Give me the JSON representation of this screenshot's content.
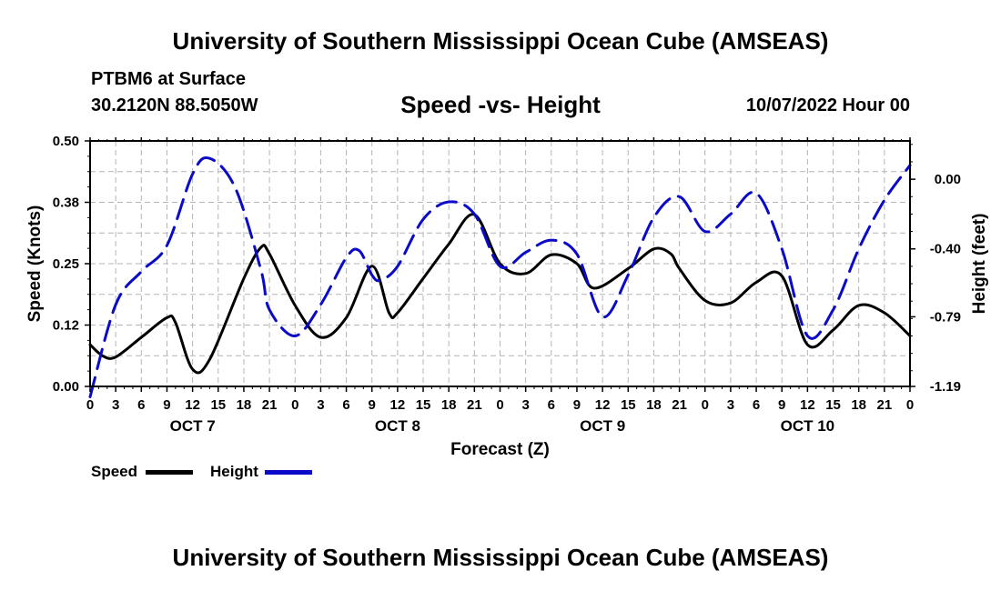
{
  "titles": {
    "main": "University of Southern Mississippi Ocean Cube (AMSEAS)",
    "footer": "University of Southern Mississippi Ocean Cube (AMSEAS)",
    "station": "PTBM6 at Surface",
    "coords": "30.2120N  88.5050W",
    "subtitle": "Speed -vs- Height",
    "datetime": "10/07/2022 Hour 00"
  },
  "legend": {
    "speed": "Speed",
    "height": "Height"
  },
  "colors": {
    "speed": "#000000",
    "height": "#0a0ac8",
    "grid": "#b4b4b4"
  },
  "chart_data": {
    "type": "line",
    "title": "Speed -vs- Height",
    "xlabel": "Forecast (Z)",
    "ylabel": "Speed (Knots)",
    "y2label": "Height (feet)",
    "x_range": [
      0,
      96
    ],
    "ylim": [
      0,
      0.5
    ],
    "y2lim": [
      -1.19,
      0.22
    ],
    "y_ticks": [
      0,
      0.125,
      0.25,
      0.375,
      0.5
    ],
    "y_tick_labels": [
      "0.00",
      "0.12",
      "0.25",
      "0.38",
      "0.50"
    ],
    "y2_ticks": [
      0.0,
      -0.4,
      -0.79,
      -1.19
    ],
    "y2_tick_labels": [
      "0.00",
      "-0.40",
      "-0.79",
      "-1.19"
    ],
    "x_tick_hours": [
      0,
      3,
      6,
      9,
      12,
      15,
      18,
      21,
      24,
      27,
      30,
      33,
      36,
      39,
      42,
      45,
      48,
      51,
      54,
      57,
      60,
      63,
      66,
      69,
      72,
      75,
      78,
      81,
      84,
      87,
      90,
      93,
      96
    ],
    "x_tick_labels": [
      "0",
      "3",
      "6",
      "9",
      "12",
      "15",
      "18",
      "21",
      "0",
      "3",
      "6",
      "9",
      "12",
      "15",
      "18",
      "21",
      "0",
      "3",
      "6",
      "9",
      "12",
      "15",
      "18",
      "21",
      "0",
      "3",
      "6",
      "9",
      "12",
      "15",
      "18",
      "21",
      "0"
    ],
    "day_labels": [
      {
        "hour": 12,
        "label": "OCT 7"
      },
      {
        "hour": 36,
        "label": "OCT 8"
      },
      {
        "hour": 60,
        "label": "OCT 9"
      },
      {
        "hour": 84,
        "label": "OCT 10"
      }
    ],
    "grid": true,
    "series": [
      {
        "name": "Speed",
        "axis": "left",
        "style": "solid",
        "points": [
          [
            0,
            0.085
          ],
          [
            1.5,
            0.062
          ],
          [
            3,
            0.06
          ],
          [
            6,
            0.1
          ],
          [
            9,
            0.14
          ],
          [
            10,
            0.13
          ],
          [
            12,
            0.035
          ],
          [
            14,
            0.055
          ],
          [
            18,
            0.22
          ],
          [
            20,
            0.283
          ],
          [
            21,
            0.27
          ],
          [
            24,
            0.165
          ],
          [
            27,
            0.1
          ],
          [
            30,
            0.14
          ],
          [
            33,
            0.245
          ],
          [
            35,
            0.15
          ],
          [
            36,
            0.15
          ],
          [
            39,
            0.22
          ],
          [
            42,
            0.29
          ],
          [
            45,
            0.35
          ],
          [
            48,
            0.25
          ],
          [
            51,
            0.23
          ],
          [
            54,
            0.268
          ],
          [
            57,
            0.25
          ],
          [
            59,
            0.2
          ],
          [
            63,
            0.24
          ],
          [
            66,
            0.28
          ],
          [
            68,
            0.27
          ],
          [
            69,
            0.24
          ],
          [
            72,
            0.175
          ],
          [
            75,
            0.17
          ],
          [
            78,
            0.212
          ],
          [
            81,
            0.225
          ],
          [
            84,
            0.085
          ],
          [
            87,
            0.115
          ],
          [
            90,
            0.165
          ],
          [
            93,
            0.15
          ],
          [
            96,
            0.103
          ]
        ]
      },
      {
        "name": "Height",
        "axis": "right",
        "style": "dashed",
        "points": [
          [
            0,
            -1.25
          ],
          [
            3,
            -0.72
          ],
          [
            6,
            -0.53
          ],
          [
            9,
            -0.38
          ],
          [
            12,
            0.03
          ],
          [
            14,
            0.12
          ],
          [
            17,
            -0.05
          ],
          [
            20,
            -0.52
          ],
          [
            21,
            -0.75
          ],
          [
            24,
            -0.9
          ],
          [
            27,
            -0.72
          ],
          [
            30,
            -0.45
          ],
          [
            31.5,
            -0.41
          ],
          [
            33,
            -0.55
          ],
          [
            34,
            -0.58
          ],
          [
            36,
            -0.5
          ],
          [
            39,
            -0.23
          ],
          [
            42,
            -0.13
          ],
          [
            45,
            -0.2
          ],
          [
            48,
            -0.5
          ],
          [
            51,
            -0.42
          ],
          [
            54,
            -0.35
          ],
          [
            57,
            -0.43
          ],
          [
            60,
            -0.79
          ],
          [
            63,
            -0.55
          ],
          [
            66,
            -0.22
          ],
          [
            69,
            -0.1
          ],
          [
            72,
            -0.3
          ],
          [
            75,
            -0.2
          ],
          [
            78,
            -0.08
          ],
          [
            81,
            -0.4
          ],
          [
            84,
            -0.9
          ],
          [
            87,
            -0.75
          ],
          [
            90,
            -0.4
          ],
          [
            93,
            -0.12
          ],
          [
            96,
            0.08
          ]
        ]
      }
    ]
  }
}
